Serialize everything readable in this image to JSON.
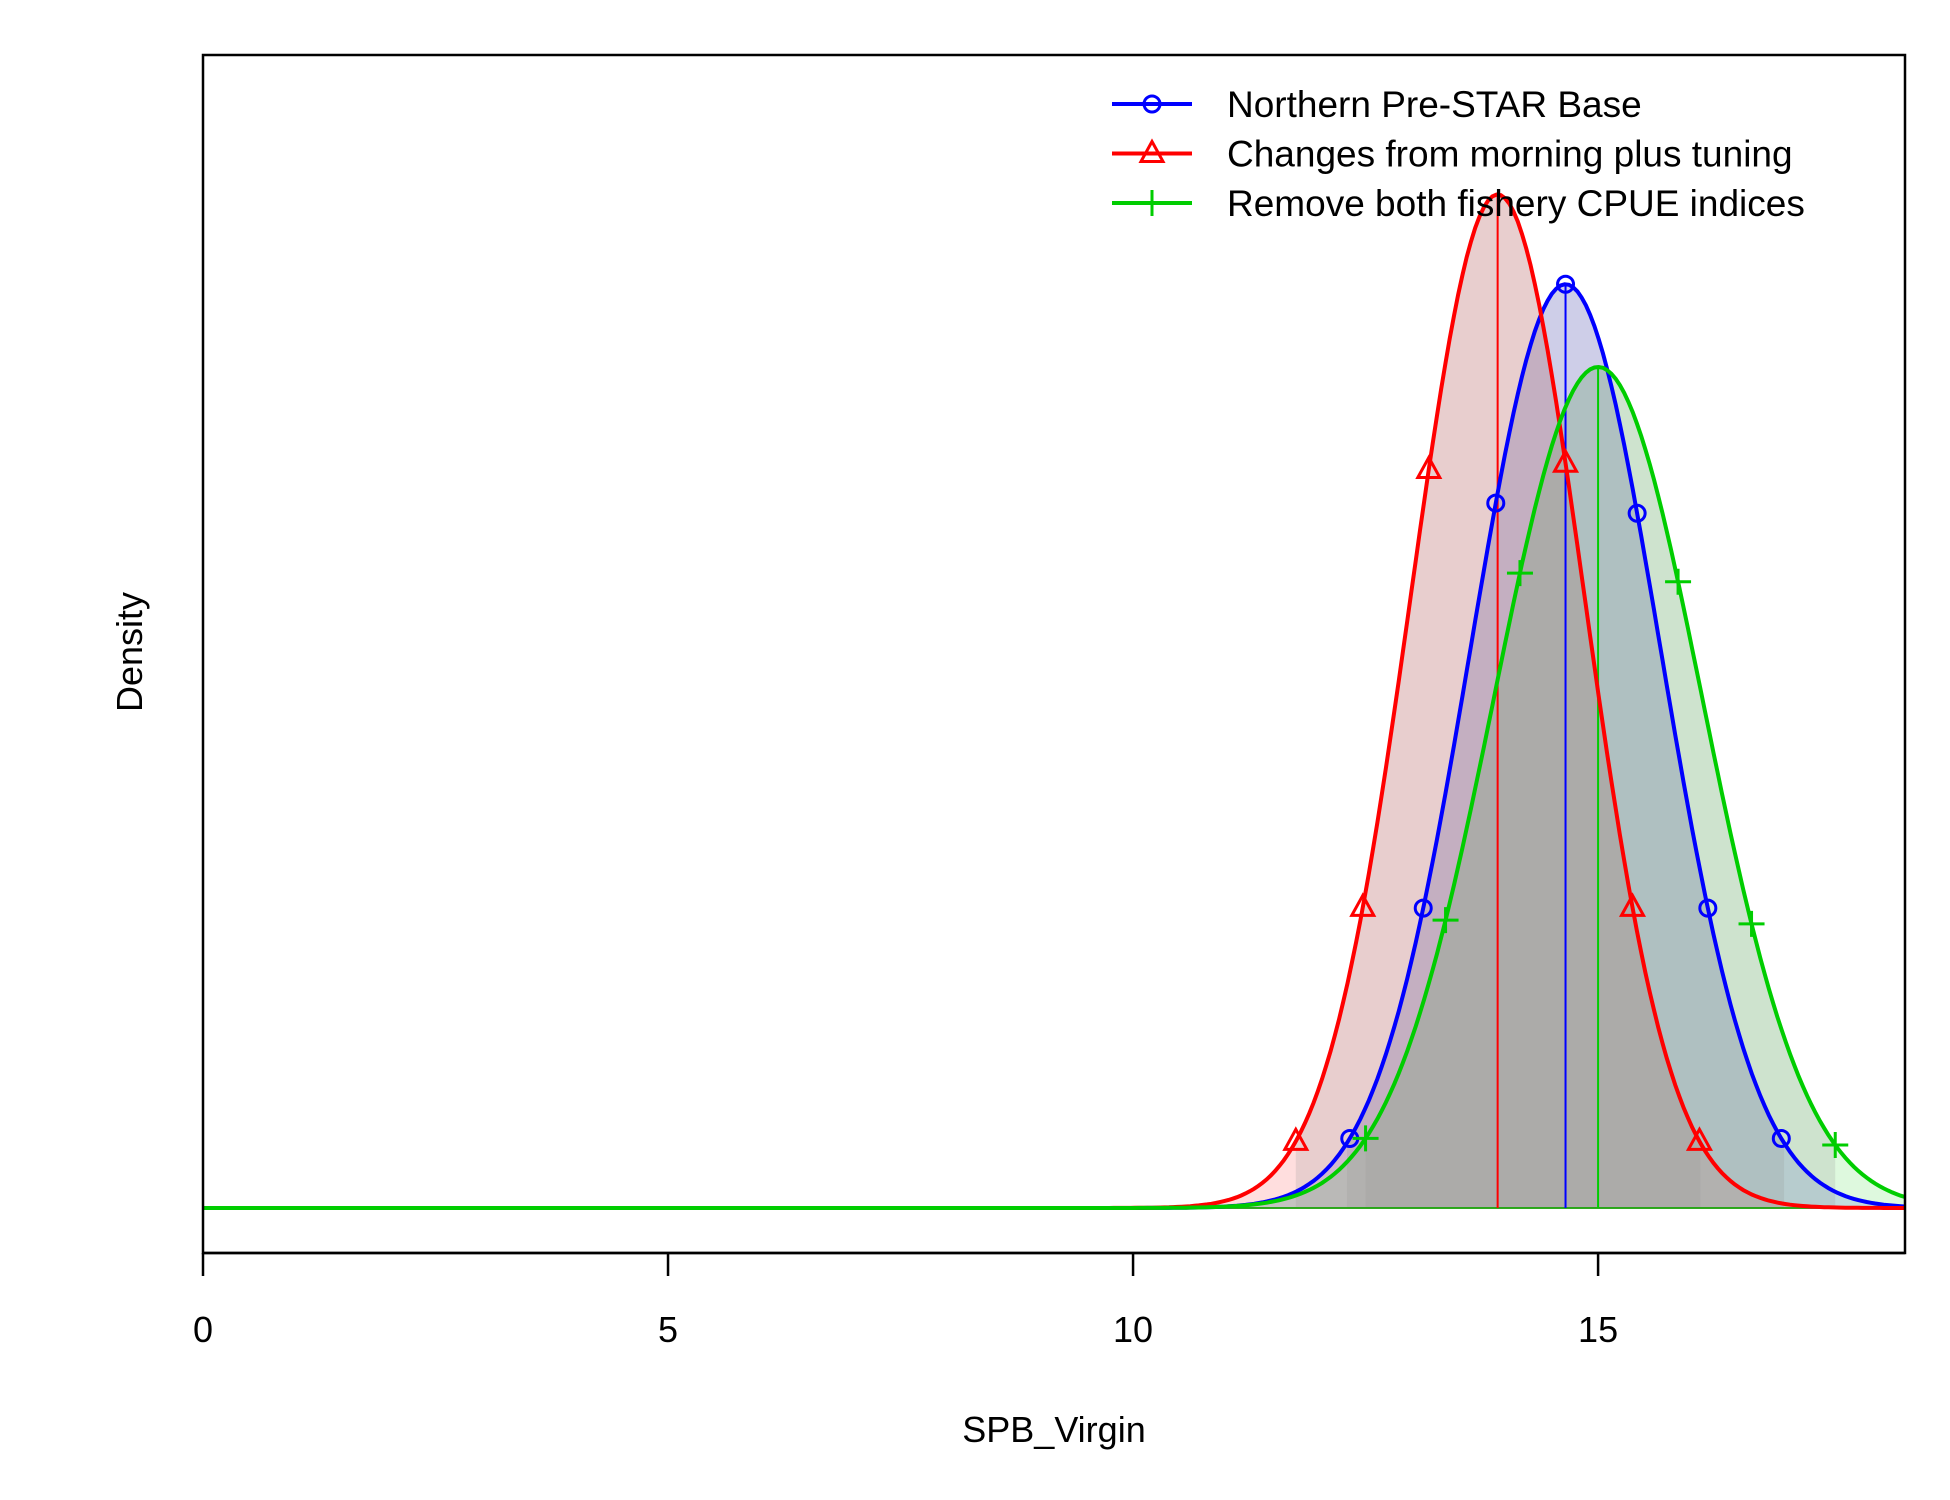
{
  "chart_data": {
    "type": "line",
    "title": "",
    "xlabel": "SPB_Virgin",
    "ylabel": "Density",
    "xlim": [
      0,
      18.3
    ],
    "xticks": [
      0,
      5,
      10,
      15
    ],
    "xtick_labels": [
      "0",
      "5",
      "10",
      "15"
    ],
    "legend_position": "top-right",
    "grid": false,
    "series": [
      {
        "name": "Northern Pre-STAR Base",
        "color": "#0000ff",
        "marker": "circle",
        "mean": 14.65,
        "sd": 1.02,
        "peak_density": 0.391,
        "ci95": [
          12.3,
          17.0
        ],
        "markers_x": [
          12.33,
          13.12,
          13.9,
          14.65,
          15.42,
          16.18,
          16.97
        ]
      },
      {
        "name": "Changes from morning plus tuning",
        "color": "#ff0000",
        "marker": "triangle",
        "mean": 13.92,
        "sd": 0.93,
        "peak_density": 0.429,
        "ci95": [
          11.75,
          16.1
        ],
        "markers_x": [
          11.75,
          12.47,
          13.18,
          14.65,
          15.37,
          16.09
        ]
      },
      {
        "name": "Remove both fishery CPUE indices",
        "color": "#00cd00",
        "marker": "plus",
        "mean": 15.0,
        "sd": 1.12,
        "peak_density": 0.356,
        "ci95": [
          12.5,
          17.55
        ],
        "markers_x": [
          12.5,
          13.36,
          14.16,
          15.86,
          16.65,
          17.55
        ]
      }
    ]
  }
}
